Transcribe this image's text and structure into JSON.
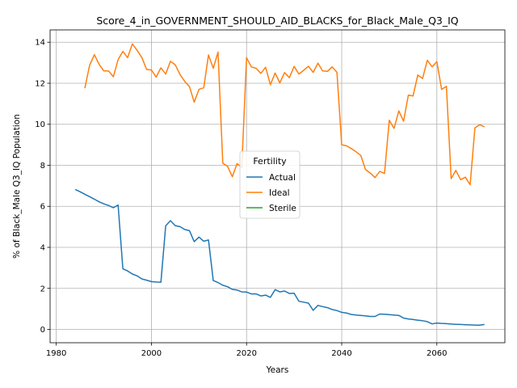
{
  "chart_data": {
    "type": "line",
    "title": "Score_4_in_GOVERNMENT_SHOULD_AID_BLACKS_for_Black_Male_Q3_IQ",
    "xlabel": "Years",
    "ylabel": "% of Black_Male Q3_IQ Population",
    "xlim": [
      1978.7,
      2074.3
    ],
    "ylim": [
      -0.65,
      14.6
    ],
    "xticks": [
      1980,
      2000,
      2020,
      2040,
      2060
    ],
    "yticks": [
      0,
      2,
      4,
      6,
      8,
      10,
      12,
      14
    ],
    "grid": true,
    "legend": {
      "title": "Fertility",
      "placement": "center"
    },
    "series": [
      {
        "name": "Actual",
        "color": "#1f77b4",
        "x": [
          1984,
          1985,
          1986,
          1987,
          1988,
          1989,
          1990,
          1991,
          1992,
          1993,
          1994,
          1995,
          1996,
          1997,
          1998,
          1999,
          2000,
          2001,
          2002,
          2003,
          2004,
          2005,
          2006,
          2007,
          2008,
          2009,
          2010,
          2011,
          2012,
          2013,
          2014,
          2015,
          2016,
          2017,
          2018,
          2019,
          2020,
          2021,
          2022,
          2023,
          2024,
          2025,
          2026,
          2027,
          2028,
          2029,
          2030,
          2031,
          2032,
          2033,
          2034,
          2035,
          2036,
          2037,
          2038,
          2039,
          2040,
          2041,
          2042,
          2043,
          2044,
          2045,
          2046,
          2047,
          2048,
          2049,
          2050,
          2051,
          2052,
          2053,
          2054,
          2055,
          2056,
          2057,
          2058,
          2059,
          2060,
          2061,
          2062,
          2063,
          2064,
          2065,
          2066,
          2067,
          2068,
          2069,
          2070
        ],
        "values": [
          6.82,
          6.71,
          6.59,
          6.47,
          6.35,
          6.22,
          6.12,
          6.04,
          5.93,
          6.06,
          2.95,
          2.85,
          2.7,
          2.61,
          2.46,
          2.4,
          2.33,
          2.31,
          2.3,
          5.05,
          5.3,
          5.06,
          5.01,
          4.87,
          4.81,
          4.28,
          4.5,
          4.3,
          4.36,
          2.38,
          2.28,
          2.15,
          2.08,
          1.95,
          1.92,
          1.83,
          1.82,
          1.73,
          1.73,
          1.63,
          1.67,
          1.56,
          1.94,
          1.83,
          1.87,
          1.75,
          1.76,
          1.37,
          1.33,
          1.28,
          0.93,
          1.17,
          1.11,
          1.06,
          0.97,
          0.92,
          0.83,
          0.8,
          0.73,
          0.7,
          0.68,
          0.66,
          0.63,
          0.63,
          0.75,
          0.74,
          0.72,
          0.7,
          0.68,
          0.55,
          0.51,
          0.48,
          0.45,
          0.42,
          0.38,
          0.27,
          0.31,
          0.29,
          0.28,
          0.26,
          0.25,
          0.24,
          0.23,
          0.22,
          0.21,
          0.21,
          0.24
        ]
      },
      {
        "name": "Ideal",
        "color": "#ff7f0e",
        "x": [
          1986,
          1987,
          1988,
          1989,
          1990,
          1991,
          1992,
          1993,
          1994,
          1995,
          1996,
          1997,
          1998,
          1999,
          2000,
          2001,
          2002,
          2003,
          2004,
          2005,
          2006,
          2007,
          2008,
          2009,
          2010,
          2011,
          2012,
          2013,
          2014,
          2015,
          2016,
          2017,
          2018,
          2019,
          2020,
          2021,
          2022,
          2023,
          2024,
          2025,
          2026,
          2027,
          2028,
          2029,
          2030,
          2031,
          2032,
          2033,
          2034,
          2035,
          2036,
          2037,
          2038,
          2039,
          2040,
          2041,
          2042,
          2043,
          2044,
          2045,
          2046,
          2047,
          2048,
          2049,
          2050,
          2051,
          2052,
          2053,
          2054,
          2055,
          2056,
          2057,
          2058,
          2059,
          2060,
          2061,
          2062,
          2063,
          2064,
          2065,
          2066,
          2067,
          2068,
          2069,
          2070
        ],
        "values": [
          11.76,
          12.87,
          13.39,
          12.92,
          12.6,
          12.6,
          12.32,
          13.15,
          13.55,
          13.25,
          13.92,
          13.6,
          13.25,
          12.67,
          12.65,
          12.3,
          12.75,
          12.45,
          13.07,
          12.9,
          12.43,
          12.09,
          11.83,
          11.08,
          11.7,
          11.78,
          13.38,
          12.73,
          13.52,
          8.1,
          7.95,
          7.44,
          8.08,
          7.9,
          13.25,
          12.8,
          12.73,
          12.48,
          12.78,
          11.93,
          12.5,
          12.02,
          12.52,
          12.27,
          12.82,
          12.45,
          12.63,
          12.83,
          12.53,
          12.98,
          12.6,
          12.58,
          12.8,
          12.53,
          9.0,
          8.95,
          8.82,
          8.66,
          8.48,
          7.8,
          7.62,
          7.4,
          7.7,
          7.6,
          10.2,
          9.8,
          10.65,
          10.15,
          11.42,
          11.38,
          12.4,
          12.23,
          13.12,
          12.8,
          13.05,
          11.7,
          11.85,
          7.35,
          7.75,
          7.3,
          7.42,
          7.05,
          9.82,
          9.98,
          9.87
        ]
      },
      {
        "name": "Sterile",
        "color": "#2ca02c",
        "x": [],
        "values": []
      }
    ]
  }
}
